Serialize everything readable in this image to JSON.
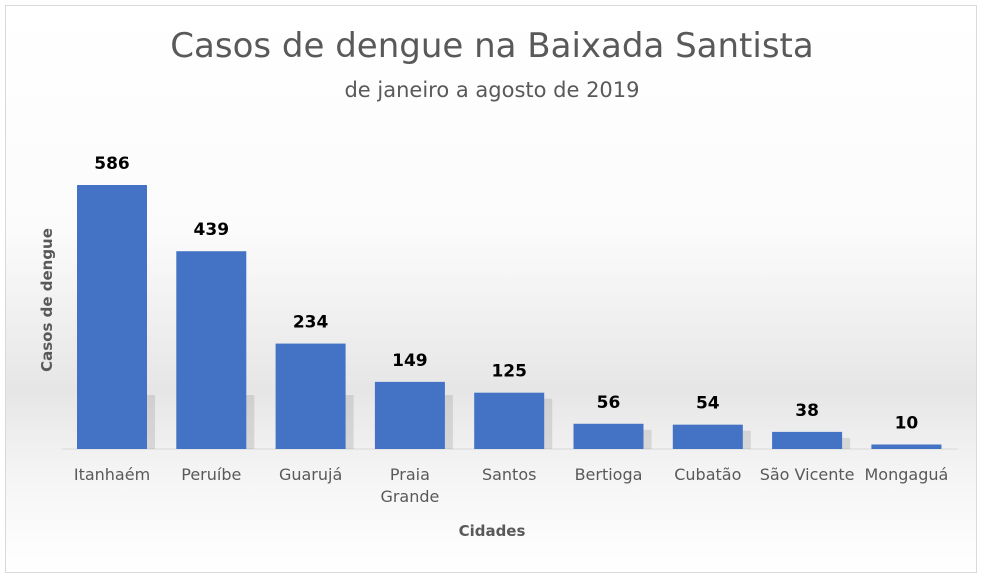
{
  "chart_data": {
    "type": "bar",
    "title": "Casos de dengue na Baixada Santista",
    "subtitle": "de janeiro a agosto de 2019",
    "xlabel": "Cidades",
    "ylabel": "Casos de dengue",
    "categories": [
      "Itanhaém",
      "Peruíbe",
      "Guarujá",
      "Praia Grande",
      "Santos",
      "Bertioga",
      "Cubatão",
      "São Vicente",
      "Mongaguá"
    ],
    "values": [
      586,
      439,
      234,
      149,
      125,
      56,
      54,
      38,
      10
    ],
    "ylim": [
      0,
      586
    ],
    "grid": false,
    "legend": "none",
    "bar_color": "#4472c4"
  }
}
